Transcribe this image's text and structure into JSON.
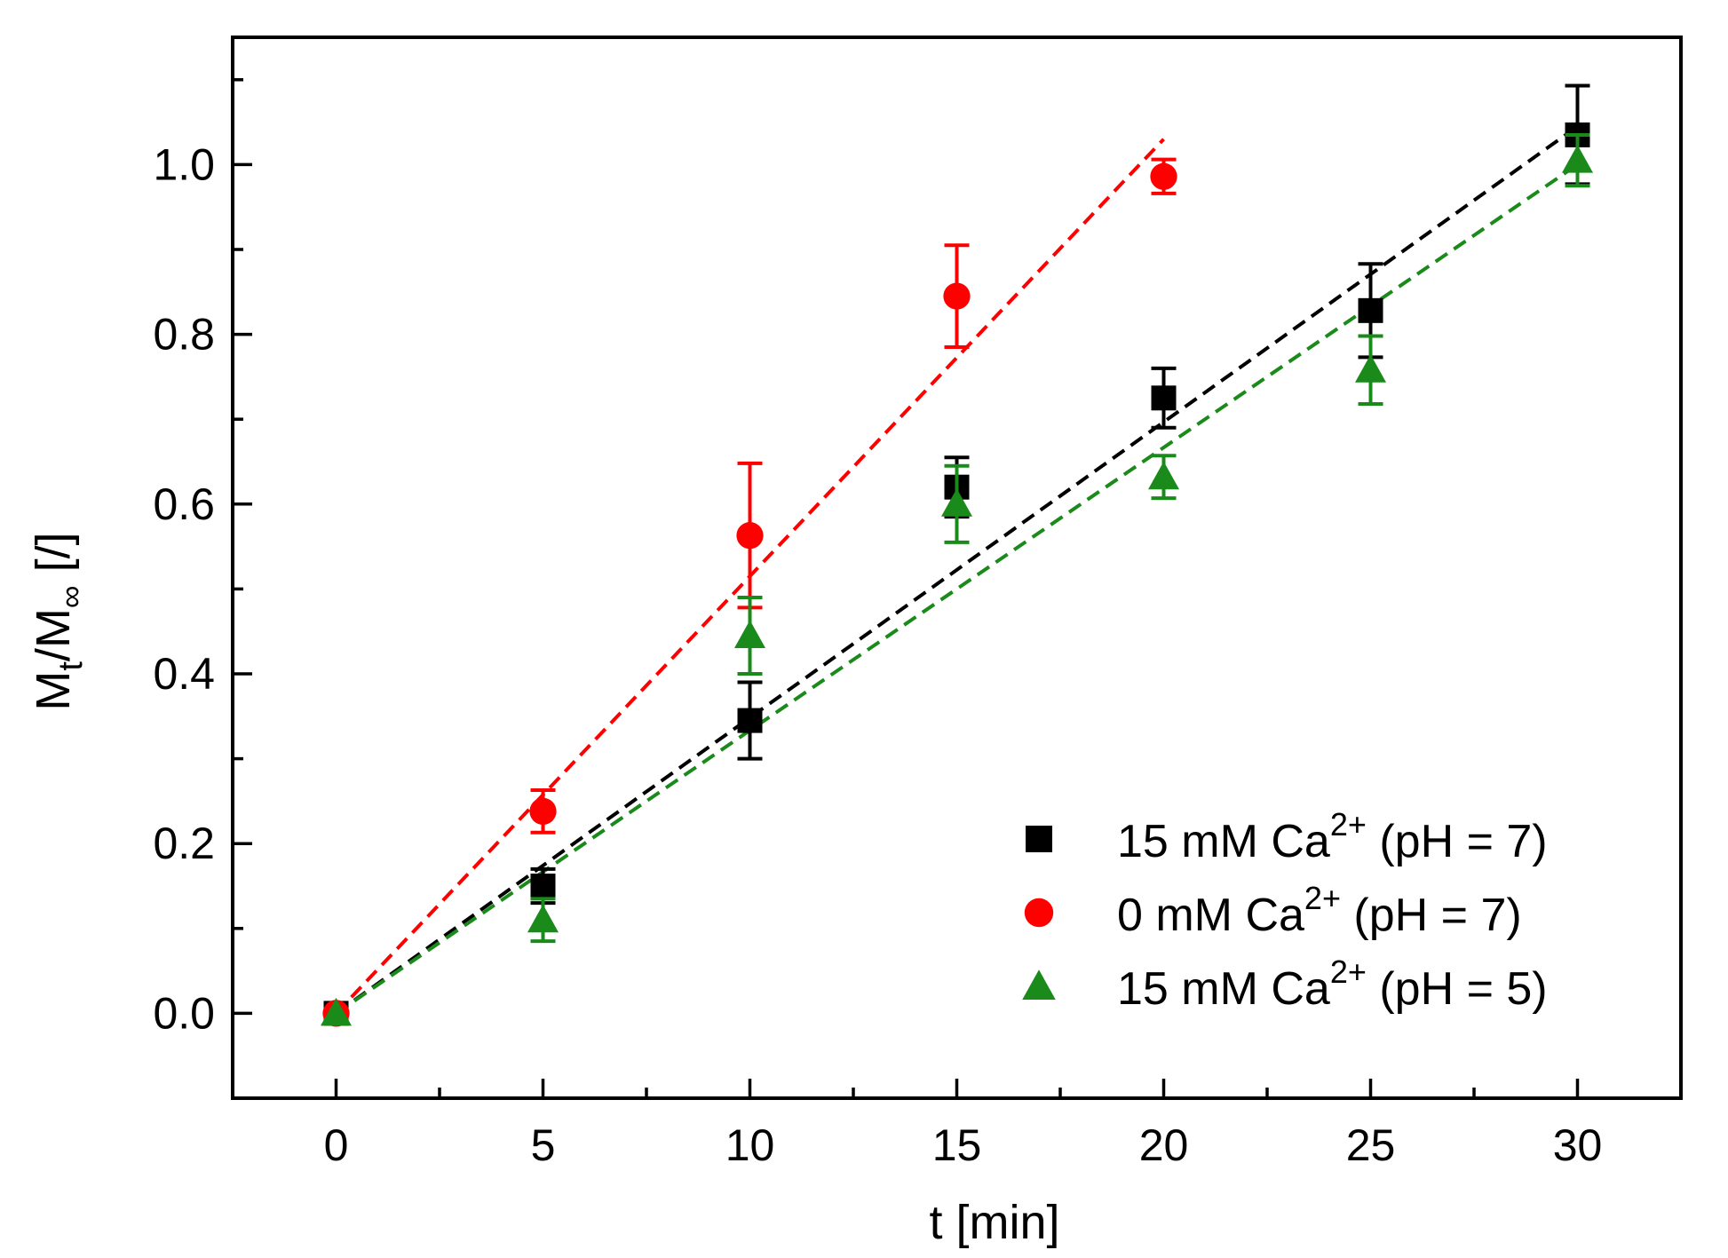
{
  "chart_data": {
    "type": "scatter",
    "xlabel": "t [min]",
    "ylabel": {
      "main": "M",
      "sub1": "t",
      "slash": "/M",
      "sub2": "∞",
      "unit": " [/]"
    },
    "xlim": [
      -2.5,
      32.5
    ],
    "ylim": [
      -0.1,
      1.15
    ],
    "xticks": [
      0,
      5,
      10,
      15,
      20,
      25,
      30
    ],
    "xtick_labels": [
      "0",
      "5",
      "10",
      "15",
      "20",
      "25",
      "30"
    ],
    "yticks": [
      0.0,
      0.2,
      0.4,
      0.6,
      0.8,
      1.0
    ],
    "ytick_labels": [
      "0.0",
      "0.2",
      "0.4",
      "0.6",
      "0.8",
      "1.0"
    ],
    "grid": false,
    "legend_position": "bottom-right",
    "series": [
      {
        "name": {
          "pre": "15 mM Ca",
          "sup": "2+",
          "post": " (pH = 7)"
        },
        "marker": "square",
        "color": "#000000",
        "x": [
          0,
          5,
          10,
          15,
          20,
          25,
          30
        ],
        "y": [
          0.0,
          0.15,
          0.345,
          0.62,
          0.725,
          0.828,
          1.035
        ],
        "err": [
          0.0,
          0.02,
          0.045,
          0.035,
          0.035,
          0.055,
          0.058
        ],
        "fit": {
          "x": [
            0,
            30
          ],
          "y": [
            0.0,
            1.045
          ]
        }
      },
      {
        "name": {
          "pre": "0 mM Ca",
          "sup": "2+",
          "post": " (pH = 7)"
        },
        "marker": "circle",
        "color": "#ff0000",
        "x": [
          0,
          5,
          10,
          15,
          20
        ],
        "y": [
          0.0,
          0.238,
          0.563,
          0.845,
          0.986
        ],
        "err": [
          0.0,
          0.025,
          0.085,
          0.06,
          0.02
        ],
        "fit": {
          "x": [
            0,
            20
          ],
          "y": [
            0.0,
            1.03
          ]
        }
      },
      {
        "name": {
          "pre": "15 mM Ca",
          "sup": "2+",
          "post": " (pH = 5)"
        },
        "marker": "triangle",
        "color": "#1a8a1a",
        "x": [
          0,
          5,
          10,
          15,
          20,
          25,
          30
        ],
        "y": [
          0.0,
          0.11,
          0.445,
          0.6,
          0.632,
          0.758,
          1.005
        ],
        "err": [
          0.0,
          0.025,
          0.045,
          0.045,
          0.025,
          0.04,
          0.03
        ],
        "fit": {
          "x": [
            0,
            30
          ],
          "y": [
            0.0,
            1.0
          ]
        }
      }
    ]
  }
}
